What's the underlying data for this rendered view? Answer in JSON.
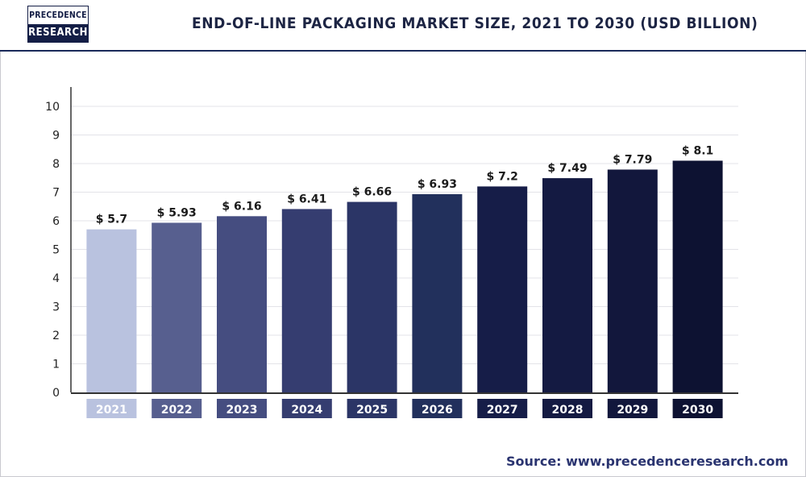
{
  "header": {
    "logo_line1": "PRECEDENCE",
    "logo_line2": "RESEARCH",
    "title": "END-OF-LINE PACKAGING MARKET SIZE, 2021 TO 2030 (USD BILLION)"
  },
  "footer": {
    "source": "Source: www.precedenceresearch.com"
  },
  "chart_data": {
    "type": "bar",
    "title": "END-OF-LINE PACKAGING MARKET SIZE, 2021 TO 2030 (USD BILLION)",
    "categories": [
      "2021",
      "2022",
      "2023",
      "2024",
      "2025",
      "2026",
      "2027",
      "2028",
      "2029",
      "2030"
    ],
    "values": [
      5.7,
      5.93,
      6.16,
      6.41,
      6.66,
      6.93,
      7.2,
      7.49,
      7.79,
      8.1
    ],
    "value_labels": [
      "$ 5.7",
      "$ 5.93",
      "$ 6.16",
      "$ 6.41",
      "$ 6.66",
      "$ 6.93",
      "$ 7.2",
      "$ 7.49",
      "$ 7.79",
      "$ 8.1"
    ],
    "y_ticks": [
      "0",
      "1",
      "2",
      "3",
      "4",
      "5",
      "6",
      "7",
      "8",
      "9",
      "10"
    ],
    "ylim": [
      0,
      10
    ],
    "xlabel": "",
    "ylabel": "",
    "grid": true,
    "legend": "none",
    "bar_colors": [
      "#b9c2df",
      "#575f8f",
      "#454d80",
      "#353d70",
      "#2b3566",
      "#22305c",
      "#161d48",
      "#141a42",
      "#12173c",
      "#0d1232"
    ]
  }
}
